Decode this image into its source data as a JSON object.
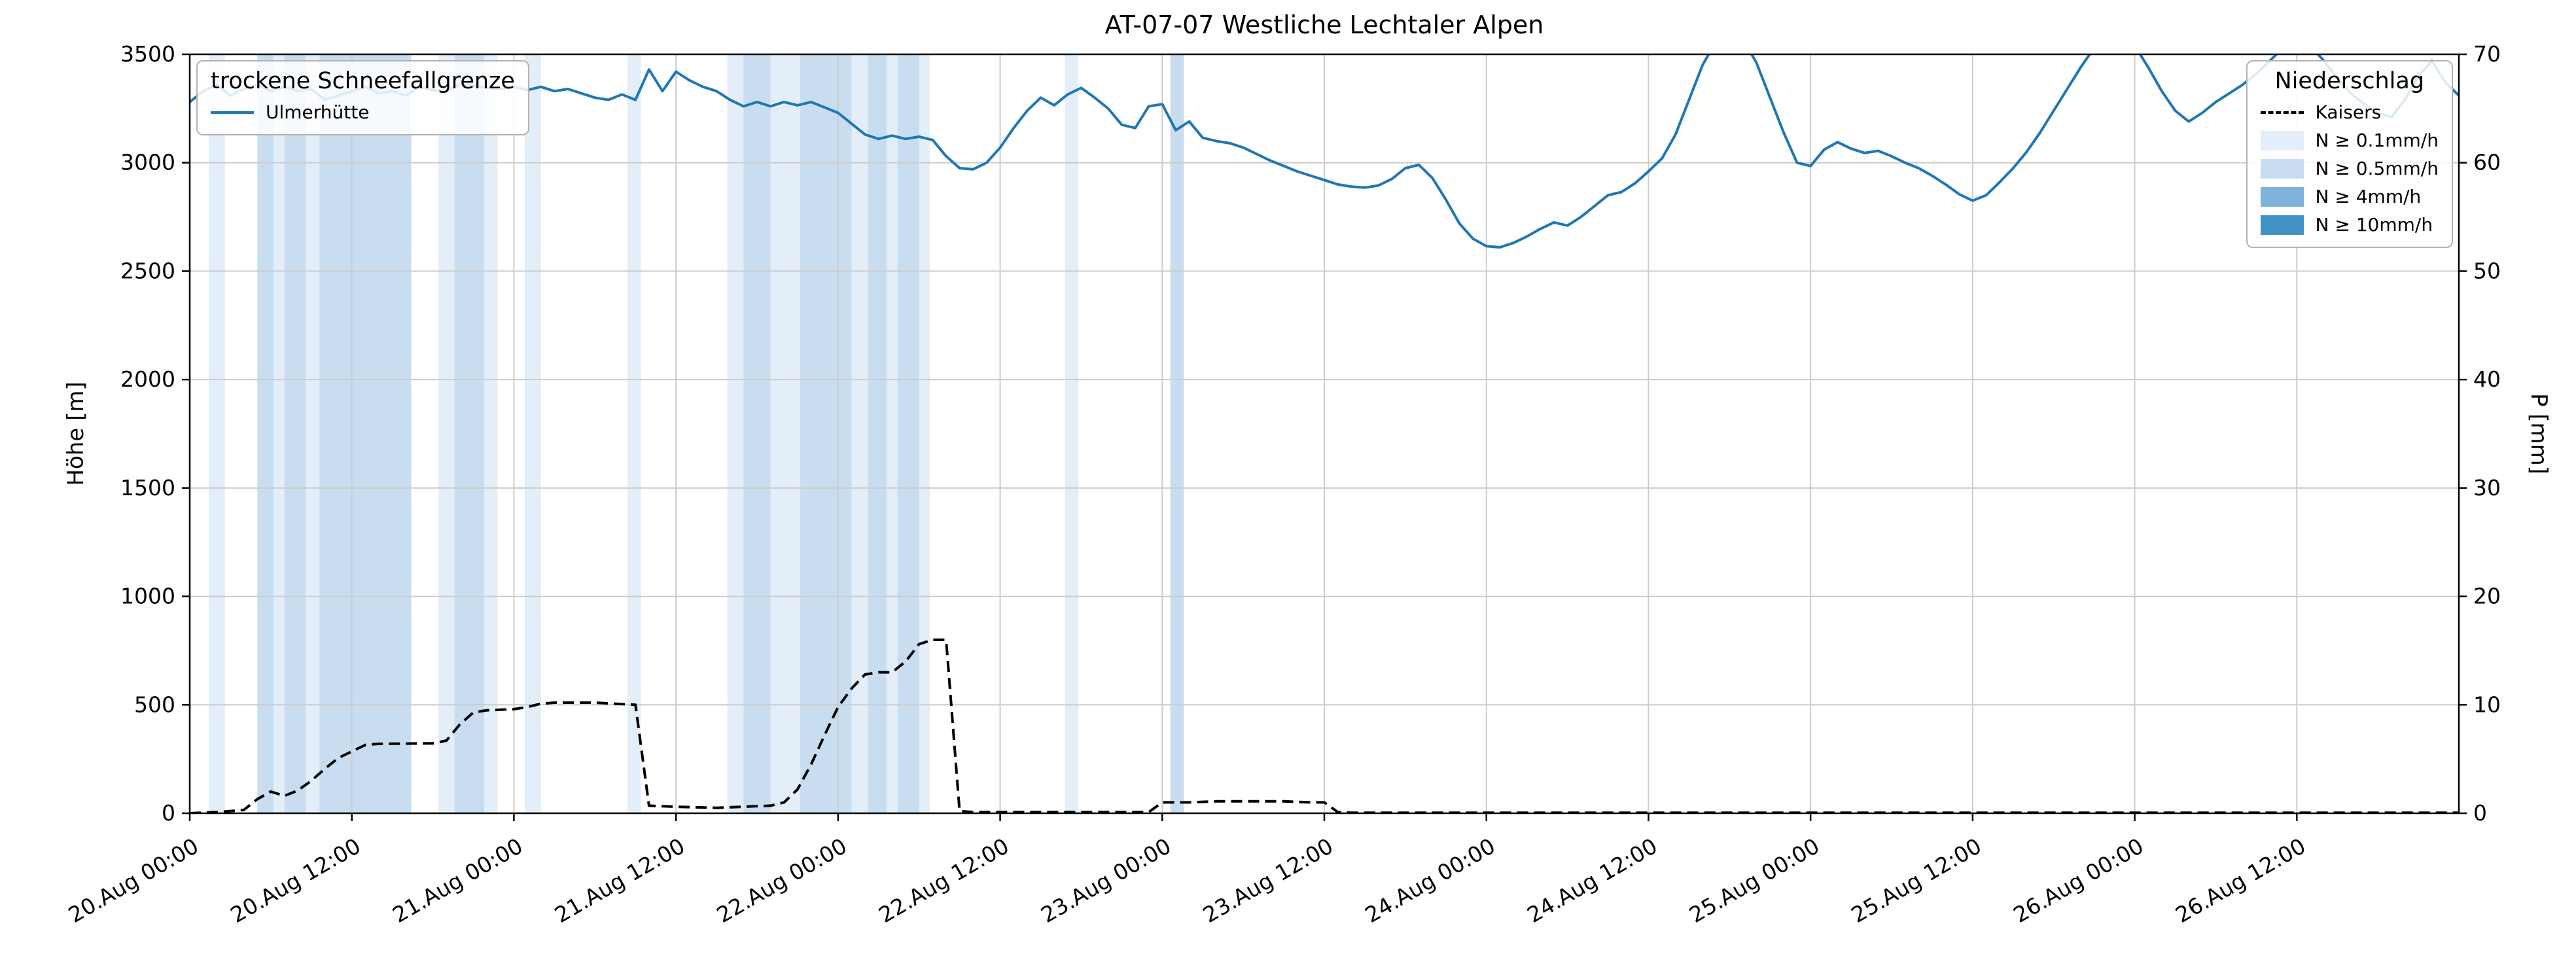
{
  "chart_data": {
    "type": "line",
    "title": "AT-07-07 Westliche Lechtaler Alpen",
    "x": {
      "unit": "hours since 20.Aug 00:00",
      "lim": [
        0,
        168
      ],
      "tick_hours": [
        0,
        12,
        24,
        36,
        48,
        60,
        72,
        84,
        96,
        108,
        120,
        132,
        144,
        156
      ],
      "tick_labels": [
        "20.Aug 00:00",
        "20.Aug 12:00",
        "21.Aug 00:00",
        "21.Aug 12:00",
        "22.Aug 00:00",
        "22.Aug 12:00",
        "23.Aug 00:00",
        "23.Aug 12:00",
        "24.Aug 00:00",
        "24.Aug 12:00",
        "25.Aug 00:00",
        "25.Aug 12:00",
        "26.Aug 00:00",
        "26.Aug 12:00"
      ]
    },
    "y_left": {
      "label": "Höhe [m]",
      "lim": [
        0,
        3500
      ],
      "ticks": [
        0,
        500,
        1000,
        1500,
        2000,
        2500,
        3000,
        3500
      ]
    },
    "y_right": {
      "label": "P [mm]",
      "lim": [
        0,
        70
      ],
      "ticks": [
        0,
        10,
        20,
        30,
        40,
        50,
        60,
        70
      ]
    },
    "grid": true,
    "legends": {
      "snowline": {
        "title": "trockene Schneefallgrenze",
        "entries": [
          {
            "label": "Ulmerhütte",
            "swatch": "line",
            "color": "#1f77b4"
          }
        ]
      },
      "precip": {
        "title": "Niederschlag",
        "entries": [
          {
            "label": "Kaisers",
            "swatch": "dash",
            "color": "#000000"
          },
          {
            "label": "N ≥ 0.1mm/h",
            "swatch": "patch",
            "color": "#e4eef8"
          },
          {
            "label": "N ≥ 0.5mm/h",
            "swatch": "patch",
            "color": "#c9ddf0"
          },
          {
            "label": "N ≥ 4mm/h",
            "swatch": "patch",
            "color": "#7fb3da"
          },
          {
            "label": "N ≥ 10mm/h",
            "swatch": "patch",
            "color": "#4292c6"
          }
        ]
      }
    },
    "series": [
      {
        "name": "Ulmerhütte",
        "role": "trockene Schneefallgrenze",
        "axis": "left",
        "unit": "m",
        "color": "#1f77b4",
        "style": "solid",
        "points": [
          [
            0,
            3280
          ],
          [
            1,
            3330
          ],
          [
            2,
            3360
          ],
          [
            3,
            3310
          ],
          [
            4,
            3340
          ],
          [
            5,
            3360
          ],
          [
            6,
            3330
          ],
          [
            7,
            3350
          ],
          [
            8,
            3330
          ],
          [
            9,
            3340
          ],
          [
            10,
            3290
          ],
          [
            11,
            3310
          ],
          [
            12,
            3330
          ],
          [
            13,
            3350
          ],
          [
            14,
            3320
          ],
          [
            15,
            3330
          ],
          [
            16,
            3310
          ],
          [
            17,
            3350
          ],
          [
            18,
            3335
          ],
          [
            19,
            3330
          ],
          [
            20,
            3360
          ],
          [
            21,
            3355
          ],
          [
            22,
            3345
          ],
          [
            23,
            3340
          ],
          [
            24,
            3350
          ],
          [
            25,
            3335
          ],
          [
            26,
            3350
          ],
          [
            27,
            3330
          ],
          [
            28,
            3340
          ],
          [
            29,
            3320
          ],
          [
            30,
            3300
          ],
          [
            31,
            3290
          ],
          [
            32,
            3315
          ],
          [
            33,
            3290
          ],
          [
            34,
            3430
          ],
          [
            35,
            3330
          ],
          [
            36,
            3420
          ],
          [
            37,
            3380
          ],
          [
            38,
            3350
          ],
          [
            39,
            3330
          ],
          [
            40,
            3290
          ],
          [
            41,
            3260
          ],
          [
            42,
            3280
          ],
          [
            43,
            3260
          ],
          [
            44,
            3280
          ],
          [
            45,
            3265
          ],
          [
            46,
            3280
          ],
          [
            47,
            3255
          ],
          [
            48,
            3230
          ],
          [
            49,
            3180
          ],
          [
            50,
            3130
          ],
          [
            51,
            3110
          ],
          [
            52,
            3125
          ],
          [
            53,
            3110
          ],
          [
            54,
            3120
          ],
          [
            55,
            3105
          ],
          [
            56,
            3030
          ],
          [
            57,
            2975
          ],
          [
            58,
            2970
          ],
          [
            59,
            3000
          ],
          [
            60,
            3070
          ],
          [
            61,
            3160
          ],
          [
            62,
            3240
          ],
          [
            63,
            3300
          ],
          [
            64,
            3265
          ],
          [
            65,
            3315
          ],
          [
            66,
            3345
          ],
          [
            67,
            3300
          ],
          [
            68,
            3250
          ],
          [
            69,
            3175
          ],
          [
            70,
            3160
          ],
          [
            71,
            3260
          ],
          [
            72,
            3270
          ],
          [
            73,
            3150
          ],
          [
            74,
            3190
          ],
          [
            75,
            3115
          ],
          [
            76,
            3100
          ],
          [
            77,
            3090
          ],
          [
            78,
            3070
          ],
          [
            79,
            3040
          ],
          [
            80,
            3010
          ],
          [
            81,
            2985
          ],
          [
            82,
            2960
          ],
          [
            83,
            2940
          ],
          [
            84,
            2920
          ],
          [
            85,
            2900
          ],
          [
            86,
            2890
          ],
          [
            87,
            2885
          ],
          [
            88,
            2895
          ],
          [
            89,
            2925
          ],
          [
            90,
            2975
          ],
          [
            91,
            2990
          ],
          [
            92,
            2930
          ],
          [
            93,
            2830
          ],
          [
            94,
            2720
          ],
          [
            95,
            2650
          ],
          [
            96,
            2615
          ],
          [
            97,
            2610
          ],
          [
            98,
            2630
          ],
          [
            99,
            2660
          ],
          [
            100,
            2695
          ],
          [
            101,
            2725
          ],
          [
            102,
            2710
          ],
          [
            103,
            2750
          ],
          [
            104,
            2800
          ],
          [
            105,
            2850
          ],
          [
            106,
            2865
          ],
          [
            107,
            2905
          ],
          [
            108,
            2960
          ],
          [
            109,
            3020
          ],
          [
            110,
            3130
          ],
          [
            111,
            3290
          ],
          [
            112,
            3450
          ],
          [
            113,
            3560
          ],
          [
            114,
            3610
          ],
          [
            115,
            3570
          ],
          [
            116,
            3460
          ],
          [
            117,
            3300
          ],
          [
            118,
            3140
          ],
          [
            119,
            3000
          ],
          [
            120,
            2985
          ],
          [
            121,
            3060
          ],
          [
            122,
            3095
          ],
          [
            123,
            3065
          ],
          [
            124,
            3045
          ],
          [
            125,
            3055
          ],
          [
            126,
            3030
          ],
          [
            127,
            3000
          ],
          [
            128,
            2975
          ],
          [
            129,
            2940
          ],
          [
            130,
            2900
          ],
          [
            131,
            2855
          ],
          [
            132,
            2825
          ],
          [
            133,
            2850
          ],
          [
            134,
            2910
          ],
          [
            135,
            2975
          ],
          [
            136,
            3050
          ],
          [
            137,
            3140
          ],
          [
            138,
            3240
          ],
          [
            139,
            3340
          ],
          [
            140,
            3440
          ],
          [
            141,
            3530
          ],
          [
            142,
            3590
          ],
          [
            143,
            3600
          ],
          [
            144,
            3540
          ],
          [
            145,
            3440
          ],
          [
            146,
            3330
          ],
          [
            147,
            3240
          ],
          [
            148,
            3190
          ],
          [
            149,
            3230
          ],
          [
            150,
            3280
          ],
          [
            151,
            3320
          ],
          [
            152,
            3360
          ],
          [
            153,
            3410
          ],
          [
            154,
            3470
          ],
          [
            155,
            3530
          ],
          [
            156,
            3570
          ],
          [
            157,
            3540
          ],
          [
            158,
            3470
          ],
          [
            159,
            3390
          ],
          [
            160,
            3320
          ],
          [
            161,
            3270
          ],
          [
            162,
            3230
          ],
          [
            163,
            3210
          ],
          [
            164,
            3290
          ],
          [
            165,
            3400
          ],
          [
            166,
            3470
          ],
          [
            167,
            3370
          ],
          [
            168,
            3310
          ]
        ]
      },
      {
        "name": "Kaisers",
        "role": "Niederschlag",
        "axis": "right",
        "unit": "mm",
        "color": "#000000",
        "style": "dashed",
        "points": [
          [
            0,
            0
          ],
          [
            2,
            0.1
          ],
          [
            4,
            0.3
          ],
          [
            5,
            1.3
          ],
          [
            6,
            2.0
          ],
          [
            7,
            1.6
          ],
          [
            8,
            2.1
          ],
          [
            9,
            3.0
          ],
          [
            10,
            4.1
          ],
          [
            11,
            5.1
          ],
          [
            12,
            5.7
          ],
          [
            13,
            6.3
          ],
          [
            14,
            6.4
          ],
          [
            18,
            6.45
          ],
          [
            19,
            6.7
          ],
          [
            20,
            8.2
          ],
          [
            21,
            9.3
          ],
          [
            22,
            9.5
          ],
          [
            24,
            9.6
          ],
          [
            25,
            9.8
          ],
          [
            26,
            10.1
          ],
          [
            27,
            10.2
          ],
          [
            30,
            10.2
          ],
          [
            33,
            10.0
          ],
          [
            34,
            0.7
          ],
          [
            36,
            0.6
          ],
          [
            39,
            0.5
          ],
          [
            43,
            0.7
          ],
          [
            44,
            1.0
          ],
          [
            45,
            2.2
          ],
          [
            46,
            4.5
          ],
          [
            47,
            7.2
          ],
          [
            48,
            9.8
          ],
          [
            49,
            11.5
          ],
          [
            50,
            12.8
          ],
          [
            51,
            13.0
          ],
          [
            52,
            13.0
          ],
          [
            53,
            14.0
          ],
          [
            54,
            15.6
          ],
          [
            55,
            16.0
          ],
          [
            56,
            16.0
          ],
          [
            57,
            0.2
          ],
          [
            58,
            0.1
          ],
          [
            71,
            0.1
          ],
          [
            72,
            1.0
          ],
          [
            74,
            1.0
          ],
          [
            76,
            1.1
          ],
          [
            81,
            1.1
          ],
          [
            83,
            1.0
          ],
          [
            84,
            1.0
          ],
          [
            85,
            0.1
          ],
          [
            86,
            0.05
          ],
          [
            168,
            0.05
          ]
        ]
      }
    ],
    "precip_bands": {
      "unit": "hours",
      "levels": {
        "0.1": "#e4eef8",
        "0.5": "#c9ddf0",
        "4": "#7fb3da",
        "10": "#4292c6"
      },
      "bands": [
        [
          1.4,
          2.6,
          "0.1"
        ],
        [
          5.0,
          6.2,
          "0.5"
        ],
        [
          6.2,
          7.0,
          "0.1"
        ],
        [
          7.0,
          8.6,
          "0.5"
        ],
        [
          8.6,
          9.6,
          "0.1"
        ],
        [
          9.6,
          16.4,
          "0.5"
        ],
        [
          18.4,
          19.6,
          "0.1"
        ],
        [
          19.6,
          21.8,
          "0.5"
        ],
        [
          21.8,
          22.8,
          "0.1"
        ],
        [
          24.8,
          26.0,
          "0.1"
        ],
        [
          32.4,
          33.4,
          "0.1"
        ],
        [
          39.8,
          41.0,
          "0.1"
        ],
        [
          41.0,
          43.0,
          "0.5"
        ],
        [
          43.0,
          45.2,
          "0.1"
        ],
        [
          45.2,
          49.0,
          "0.5"
        ],
        [
          49.0,
          50.2,
          "0.1"
        ],
        [
          50.2,
          51.6,
          "0.5"
        ],
        [
          51.6,
          52.4,
          "0.1"
        ],
        [
          52.4,
          54.0,
          "0.5"
        ],
        [
          54.0,
          54.8,
          "0.1"
        ],
        [
          64.8,
          65.8,
          "0.1"
        ],
        [
          72.6,
          73.6,
          "0.5"
        ]
      ]
    }
  }
}
